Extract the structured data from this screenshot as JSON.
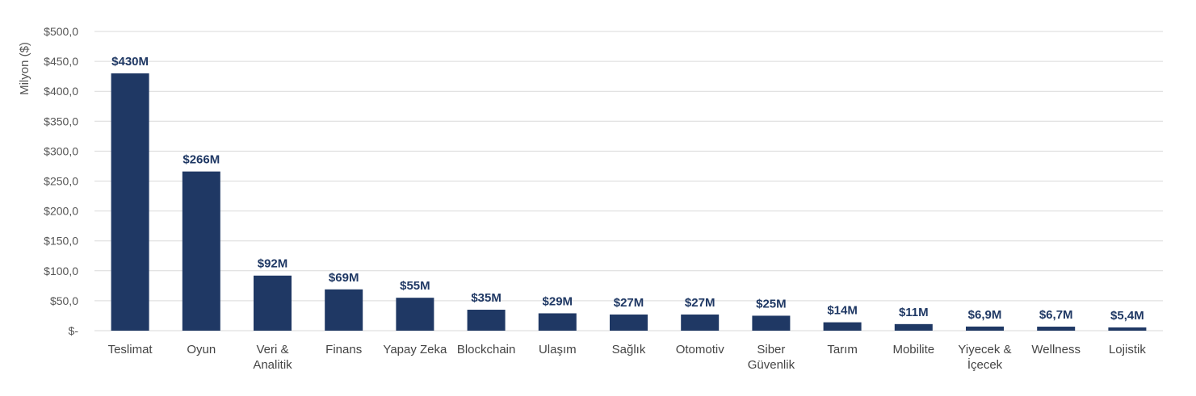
{
  "chart_data": {
    "type": "bar",
    "ylabel": "Milyon ($)",
    "ylim": [
      0,
      500
    ],
    "y_ticks": [
      {
        "value": 0,
        "label": "$-"
      },
      {
        "value": 50,
        "label": "$50,0"
      },
      {
        "value": 100,
        "label": "$100,0"
      },
      {
        "value": 150,
        "label": "$150,0"
      },
      {
        "value": 200,
        "label": "$200,0"
      },
      {
        "value": 250,
        "label": "$250,0"
      },
      {
        "value": 300,
        "label": "$300,0"
      },
      {
        "value": 350,
        "label": "$350,0"
      },
      {
        "value": 400,
        "label": "$400,0"
      },
      {
        "value": 450,
        "label": "$450,0"
      },
      {
        "value": 500,
        "label": "$500,0"
      }
    ],
    "grid": true,
    "legend": "none",
    "categories": [
      [
        "Teslimat"
      ],
      [
        "Oyun"
      ],
      [
        "Veri &",
        "Analitik"
      ],
      [
        "Finans"
      ],
      [
        "Yapay Zeka"
      ],
      [
        "Blockchain"
      ],
      [
        "Ulaşım"
      ],
      [
        "Sağlık"
      ],
      [
        "Otomotiv"
      ],
      [
        "Siber",
        "Güvenlik"
      ],
      [
        "Tarım"
      ],
      [
        "Mobilite"
      ],
      [
        "Yiyecek &",
        "İçecek"
      ],
      [
        "Wellness"
      ],
      [
        "Lojistik"
      ]
    ],
    "values": [
      430,
      266,
      92,
      69,
      55,
      35,
      29,
      27,
      27,
      25,
      14,
      11,
      6.9,
      6.7,
      5.4
    ],
    "data_labels": [
      "$430M",
      "$266M",
      "$92M",
      "$69M",
      "$55M",
      "$35M",
      "$29M",
      "$27M",
      "$27M",
      "$25M",
      "$14M",
      "$11M",
      "$6,9M",
      "$6,7M",
      "$5,4M"
    ],
    "colors": {
      "bar": "#1f3864",
      "grid": "#d9d9d9",
      "label": "#1f3864"
    }
  }
}
